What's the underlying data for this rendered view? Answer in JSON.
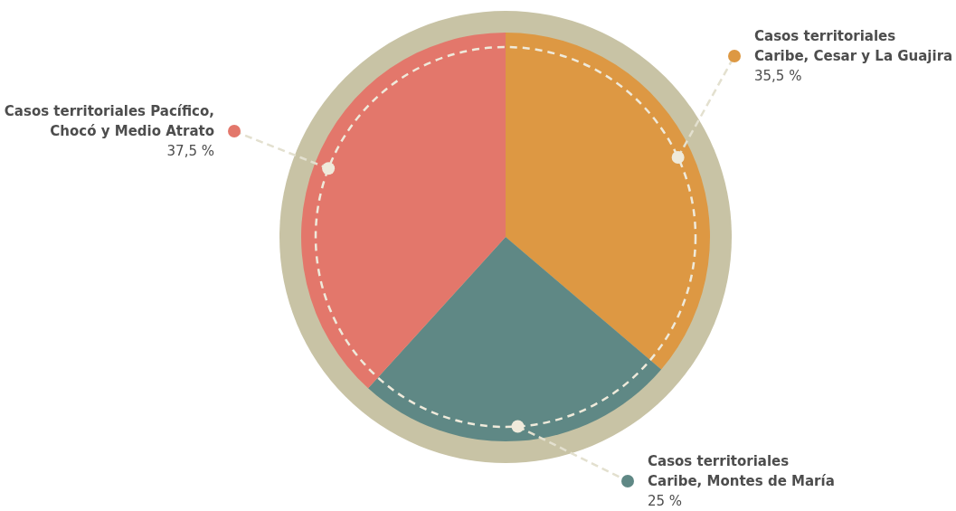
{
  "chart_data": {
    "type": "pie",
    "categories": [
      "Casos territoriales\nCaribe, Cesar y La Guajira",
      "Casos territoriales\nCaribe, Montes de María",
      "Casos territoriales Pacífico,\nChocó y Medio Atrato"
    ],
    "values": [
      35.5,
      25,
      37.5
    ],
    "colors": [
      "#dd9843",
      "#5f8885",
      "#e3776b"
    ],
    "value_labels": [
      "35,5 %",
      "25 %",
      "37,5 %"
    ]
  }
}
